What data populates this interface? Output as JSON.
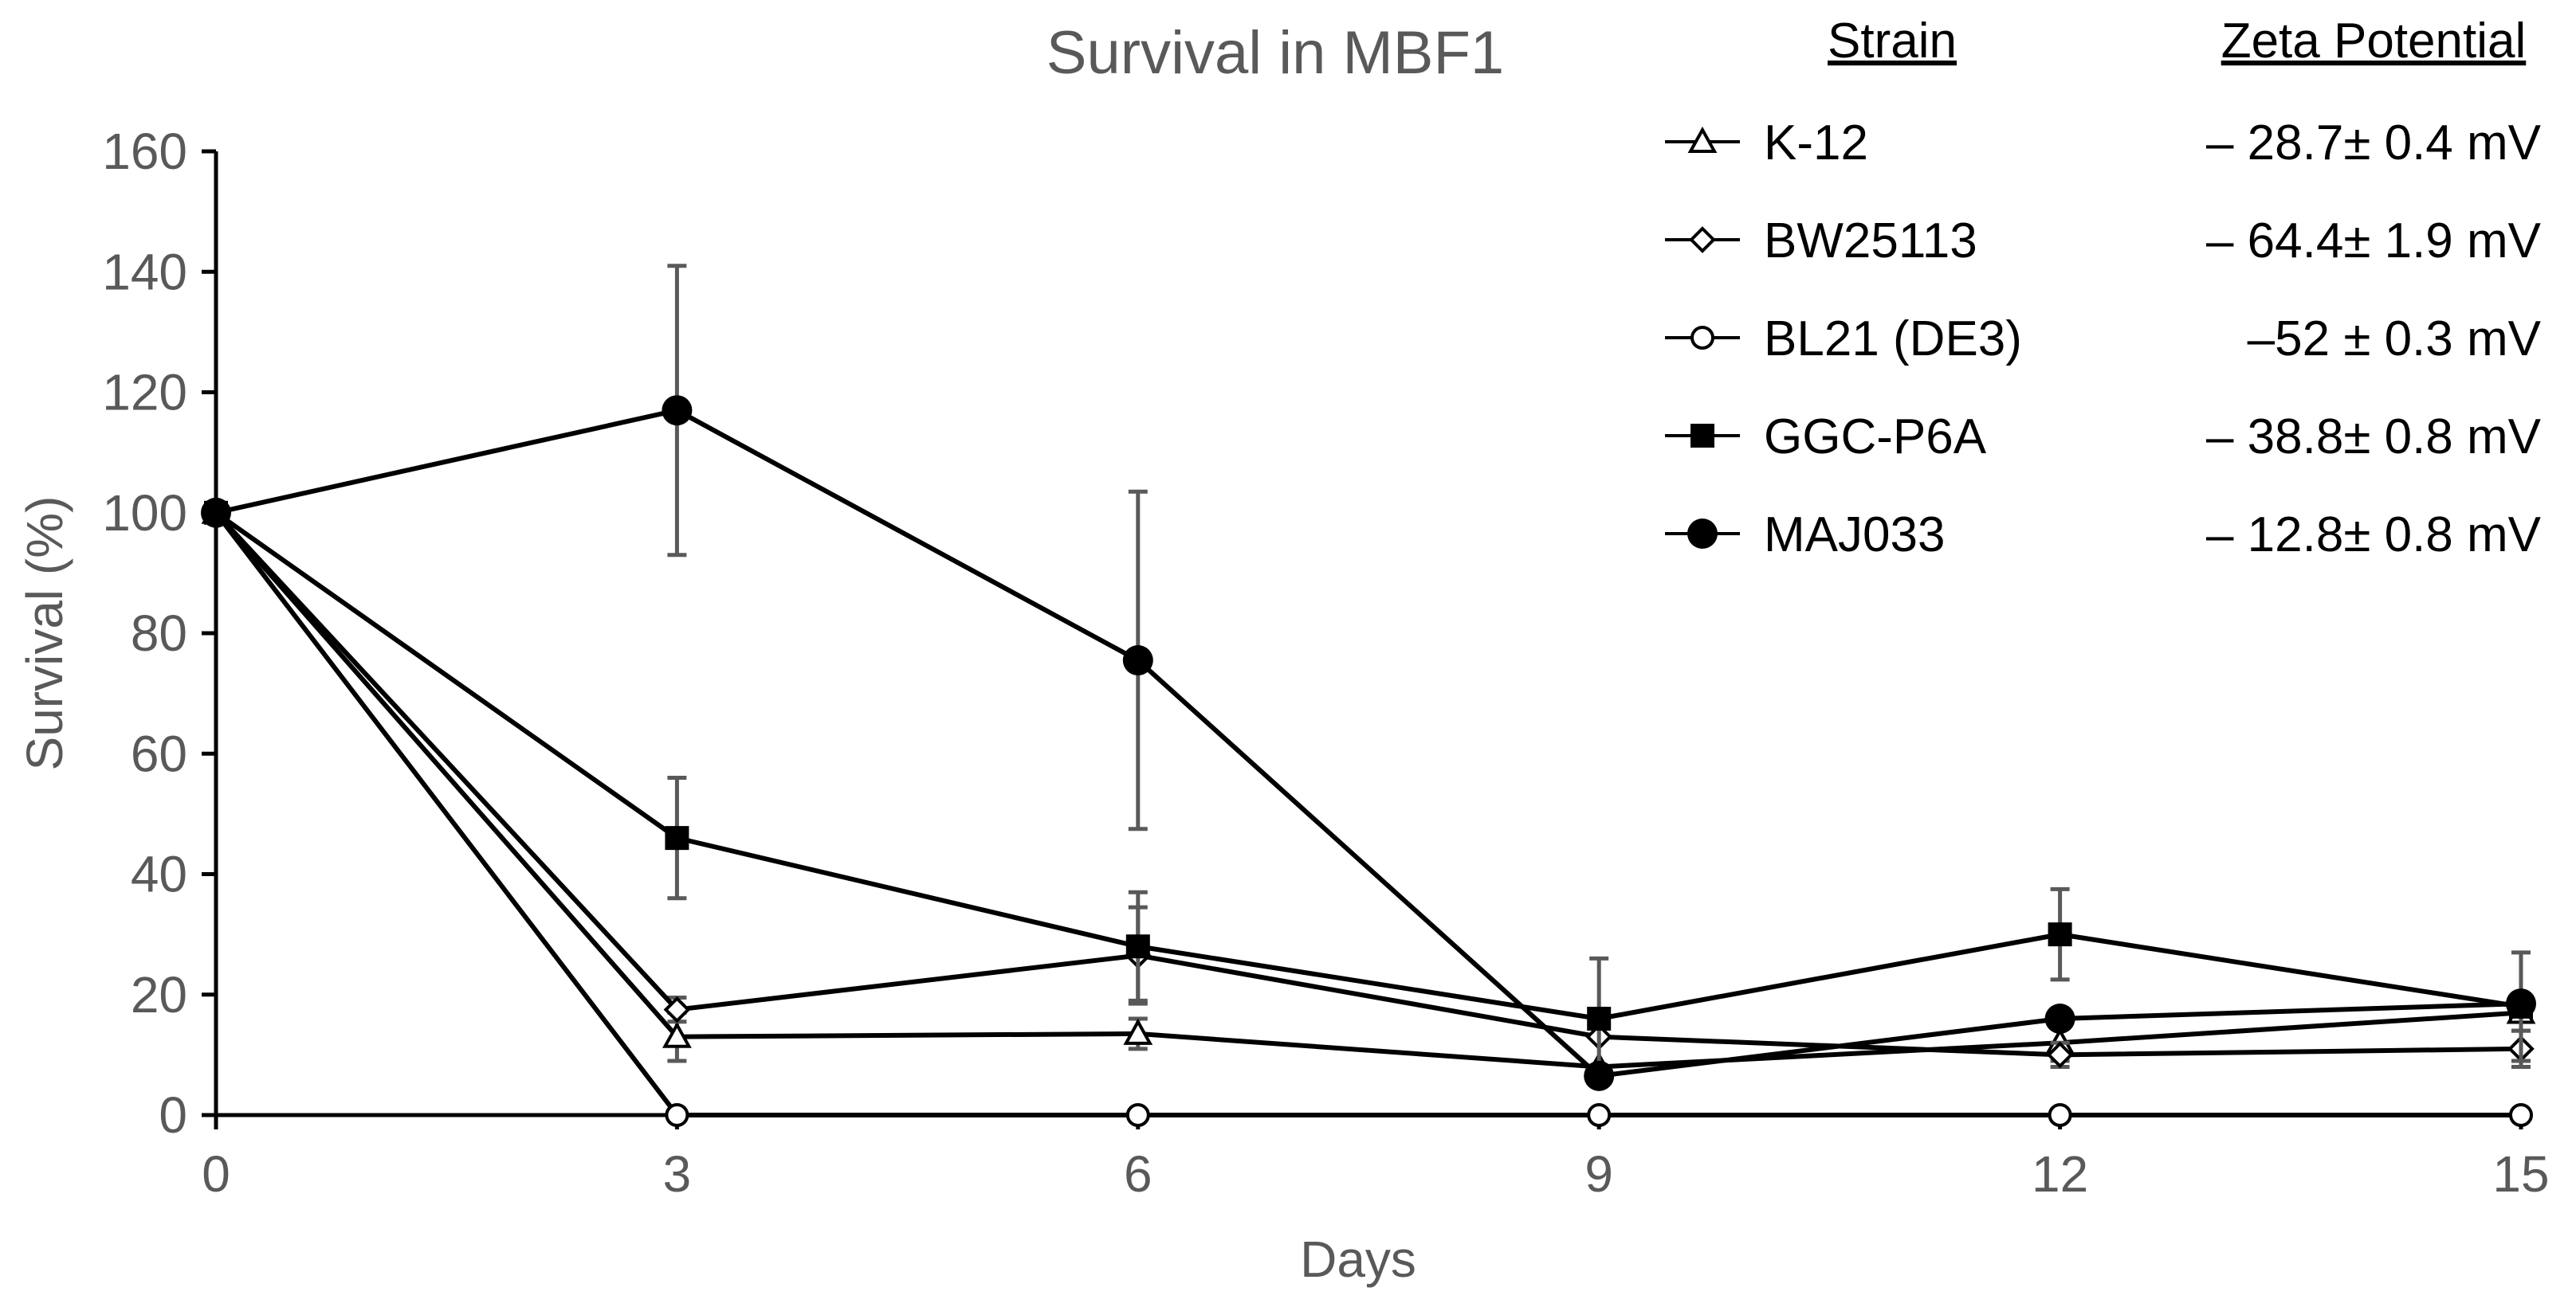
{
  "chart_data": {
    "type": "line",
    "title": "Survival in MBF1",
    "xlabel": "Days",
    "ylabel": "Survival (%)",
    "xlim": [
      0,
      15
    ],
    "ylim": [
      0,
      160
    ],
    "x_ticks": [
      "0",
      "3",
      "6",
      "9",
      "12",
      "15"
    ],
    "y_ticks": [
      "0",
      "20",
      "40",
      "60",
      "80",
      "100",
      "120",
      "140",
      "160"
    ],
    "x": [
      0,
      3,
      6,
      9,
      12,
      15
    ],
    "grid": false,
    "legend_position": "top-right",
    "legend_headers": {
      "strain": "Strain",
      "zeta": "Zeta Potential"
    },
    "series": [
      {
        "name": "K-12",
        "marker": "triangle-open",
        "zeta": "– 28.7± 0.4 mV",
        "values": [
          100,
          13,
          13.5,
          8,
          12,
          17
        ],
        "errors": [
          0,
          4,
          2.5,
          0,
          3,
          3
        ]
      },
      {
        "name": "BW25113",
        "marker": "diamond-open",
        "zeta": "– 64.4± 1.9 mV",
        "values": [
          100,
          17.5,
          26.5,
          13,
          10,
          11
        ],
        "errors": [
          0,
          2,
          8,
          0,
          2,
          3
        ]
      },
      {
        "name": "BL21 (DE3)",
        "marker": "circle-open",
        "zeta": "–52 ± 0.3 mV",
        "values": [
          100,
          0,
          0,
          0,
          0,
          0
        ],
        "errors": [
          0,
          0,
          0,
          0,
          0,
          0
        ]
      },
      {
        "name": "GGC-P6A",
        "marker": "square-filled",
        "zeta": "– 38.8± 0.8 mV",
        "values": [
          100,
          46,
          28,
          16,
          30,
          18
        ],
        "errors": [
          0,
          10,
          9,
          10,
          7.5,
          9
        ]
      },
      {
        "name": "MAJ033",
        "marker": "circle-filled",
        "zeta": "– 12.8±  0.8 mV",
        "values": [
          100,
          117,
          75.5,
          6.5,
          16,
          18.5
        ],
        "errors": [
          0,
          24,
          28,
          0,
          0,
          0
        ]
      }
    ]
  }
}
